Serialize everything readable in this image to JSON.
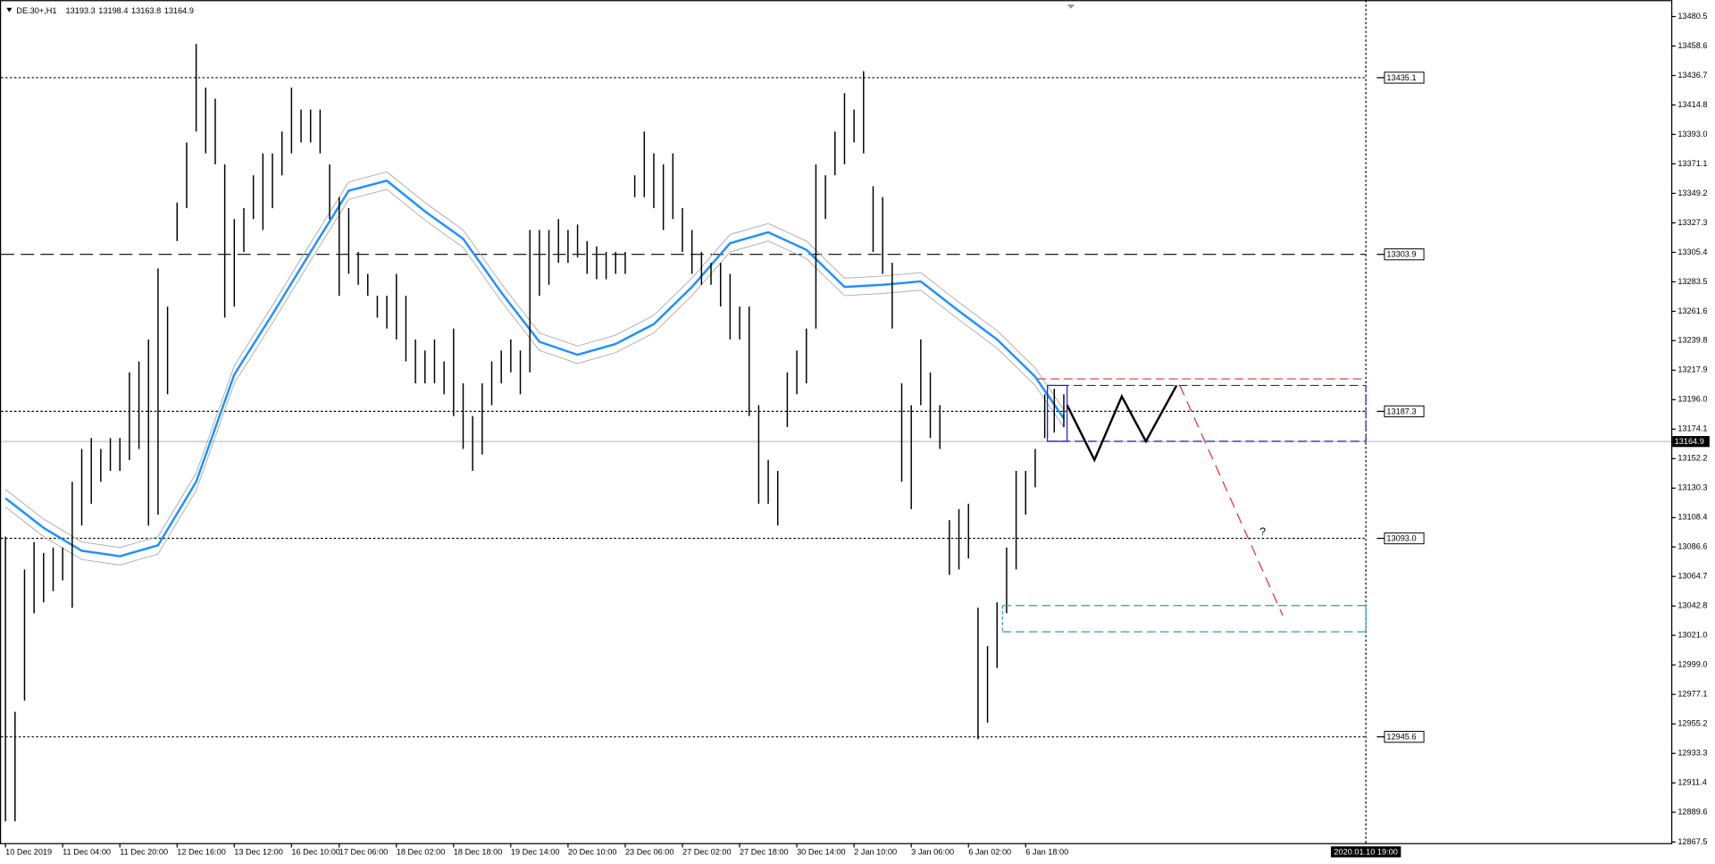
{
  "chart_data": {
    "type": "ohlc",
    "title": "DE.30+,H1",
    "ohlc": [
      13193.3,
      13198.4,
      13163.8,
      13164.9
    ],
    "color": "#000000",
    "categories": [
      "10 Dec 2019",
      null,
      null,
      null,
      null,
      null,
      "11 Dec 04:00",
      null,
      null,
      null,
      null,
      null,
      "11 Dec 20:00",
      null,
      null,
      null,
      null,
      null,
      "12 Dec 16:00",
      null,
      null,
      null,
      null,
      null,
      "13 Dec 12:00",
      null,
      null,
      null,
      null,
      null,
      "16 Dec 10:00",
      null,
      null,
      null,
      null,
      "17 Dec 06:00",
      null,
      null,
      null,
      null,
      null,
      "18 Dec 02:00",
      null,
      null,
      null,
      null,
      null,
      "18 Dec 18:00",
      null,
      null,
      null,
      null,
      null,
      "19 Dec 14:00",
      null,
      null,
      null,
      null,
      null,
      "20 Dec 10:00",
      null,
      null,
      null,
      null,
      null,
      "23 Dec 06:00",
      null,
      null,
      null,
      null,
      null,
      "27 Dec 02:00",
      null,
      null,
      null,
      null,
      null,
      "27 Dec 18:00",
      null,
      null,
      null,
      null,
      null,
      "30 Dec 14:00",
      null,
      null,
      null,
      null,
      null,
      "2 Jan 10:00",
      null,
      null,
      null,
      null,
      null,
      "3 Jan 06:00",
      null,
      null,
      null,
      null,
      null,
      "6 Jan 02:00",
      null,
      null,
      null,
      null,
      null,
      "6 Jan 18:00",
      null,
      null,
      null,
      null
    ],
    "high": [
      13094.3,
      12964.2,
      13069.9,
      13090.3,
      13082.1,
      13086.2,
      13086.2,
      13135.0,
      13159.4,
      13167.5,
      13159.4,
      13167.5,
      13167.5,
      13216.3,
      13224.4,
      13240.7,
      13293.5,
      13265.1,
      13342.3,
      13387.0,
      13460.2,
      13427.7,
      13419.5,
      13370.7,
      13330.1,
      13338.2,
      13362.6,
      13378.9,
      13378.9,
      13395.1,
      13427.7,
      13411.4,
      13411.4,
      13411.4,
      13370.7,
      13346.4,
      13338.2,
      13305.7,
      13289.4,
      13273.2,
      13273.2,
      13289.4,
      13273.2,
      13240.7,
      13232.5,
      13240.7,
      13224.4,
      13248.8,
      13208.1,
      13183.8,
      13208.1,
      13224.4,
      13232.5,
      13240.7,
      13232.5,
      13322.0,
      13322.0,
      13322.0,
      13330.1,
      13322.0,
      13326.0,
      13313.8,
      13309.8,
      13305.7,
      13305.7,
      13305.7,
      13362.6,
      13395.1,
      13378.9,
      13370.7,
      13378.9,
      13338.2,
      13322.0,
      13305.7,
      13297.6,
      13297.6,
      13289.4,
      13265.1,
      13265.1,
      13191.9,
      13151.2,
      13143.1,
      13216.3,
      13232.5,
      13248.8,
      13370.7,
      13362.6,
      13395.1,
      13423.6,
      13411.4,
      13439.9,
      13354.5,
      13346.4,
      13297.6,
      13208.1,
      13191.9,
      13240.7,
      13216.3,
      13191.9,
      13106.5,
      13114.7,
      13118.7,
      13041.5,
      13013.0,
      13045.5,
      13086.2,
      13143.1,
      13143.1,
      13159.4,
      13200.0,
      13204.1,
      13200.0
    ],
    "low": [
      12882.9,
      12882.9,
      12972.4,
      13037.4,
      13045.5,
      13053.7,
      13061.8,
      13041.5,
      13102.5,
      13118.7,
      13135.0,
      13143.1,
      13143.1,
      13151.2,
      13159.4,
      13102.5,
      13110.6,
      13200.0,
      13313.8,
      13338.2,
      13395.1,
      13378.9,
      13370.7,
      13256.9,
      13265.1,
      13305.7,
      13330.1,
      13322.0,
      13338.2,
      13362.6,
      13378.9,
      13387.0,
      13387.0,
      13378.9,
      13330.1,
      13273.2,
      13289.4,
      13281.3,
      13273.2,
      13256.9,
      13248.8,
      13240.7,
      13224.4,
      13208.1,
      13208.1,
      13208.1,
      13200.0,
      13183.8,
      13159.4,
      13143.1,
      13155.3,
      13191.9,
      13208.1,
      13216.3,
      13200.0,
      13216.3,
      13273.2,
      13281.3,
      13297.6,
      13297.6,
      13301.6,
      13289.4,
      13285.4,
      13285.4,
      13289.4,
      13289.4,
      13346.4,
      13346.4,
      13338.2,
      13322.0,
      13330.1,
      13305.7,
      13289.4,
      13281.3,
      13281.3,
      13265.1,
      13240.7,
      13240.7,
      13183.8,
      13118.7,
      13118.7,
      13102.5,
      13175.6,
      13200.0,
      13208.1,
      13248.8,
      13330.1,
      13362.6,
      13370.7,
      13387.0,
      13378.9,
      13305.7,
      13289.4,
      13248.8,
      13135.0,
      13114.7,
      13191.9,
      13167.5,
      13159.4,
      13065.9,
      13069.9,
      13078.1,
      12943.9,
      12956.1,
      12996.8,
      13037.4,
      13069.9,
      13110.6,
      13130.9,
      13167.5,
      13171.6,
      13175.6
    ],
    "ma": {
      "color": "#1e90ff",
      "x": [
        0,
        4,
        8,
        12,
        16,
        20,
        24,
        28,
        32,
        36,
        40,
        44,
        48,
        52,
        56,
        60,
        64,
        68,
        72,
        76,
        80,
        84,
        88,
        92,
        96,
        100,
        104,
        108,
        111
      ],
      "values": [
        13122.8,
        13100.8,
        13083.8,
        13079.7,
        13087.8,
        13135.0,
        13214.7,
        13259.4,
        13305.7,
        13351.2,
        13358.6,
        13335.8,
        13315.5,
        13275.6,
        13239.0,
        13229.3,
        13237.4,
        13252.1,
        13279.7,
        13312.2,
        13320.3,
        13307.3,
        13279.7,
        13281.3,
        13283.8,
        13261.8,
        13240.7,
        13213.0,
        13182.1
      ],
      "upper": [
        13129.3,
        13107.3,
        13090.3,
        13086.2,
        13094.3,
        13141.5,
        13221.2,
        13265.9,
        13312.2,
        13357.7,
        13365.1,
        13342.3,
        13322.0,
        13282.1,
        13245.5,
        13235.8,
        13243.9,
        13258.6,
        13286.2,
        13318.7,
        13326.8,
        13313.8,
        13286.2,
        13287.8,
        13290.3,
        13268.3,
        13247.2,
        13219.5,
        13188.6
      ],
      "lower": [
        13116.3,
        13094.3,
        13077.3,
        13073.2,
        13081.3,
        13128.5,
        13208.2,
        13252.9,
        13299.2,
        13344.7,
        13352.1,
        13329.3,
        13309.0,
        13269.1,
        13232.5,
        13222.8,
        13230.9,
        13245.6,
        13273.2,
        13305.7,
        13313.8,
        13300.8,
        13273.2,
        13274.8,
        13277.3,
        13255.3,
        13234.2,
        13206.5,
        13175.6
      ],
      "band_color": "#b0b0b0"
    },
    "levels": [
      {
        "value": 13435.1,
        "label": "13435.1",
        "style": "dotted"
      },
      {
        "value": 13303.9,
        "label": "13303.9",
        "style": "dashed"
      },
      {
        "value": 13187.3,
        "label": "13187.3",
        "style": "dotted"
      },
      {
        "value": 13093.0,
        "label": "13093.0",
        "style": "dotted"
      },
      {
        "value": 12945.6,
        "label": "12945.6",
        "style": "dotted"
      }
    ],
    "last_price": 13164.9,
    "cursor_time": "2020.01.10 19:00",
    "ylim": [
      12866.7,
      13492.7
    ],
    "yticks": [
      13480.5,
      13458.6,
      13436.7,
      13414.8,
      {
        "value": 13393,
        "label": "13393.0"
      },
      13371.1,
      13349.2,
      13327.3,
      13305.4,
      13283.5,
      13261.6,
      13239.8,
      13217.9,
      {
        "value": 13196,
        "label": "13196.0"
      },
      13174.1,
      13152.2,
      13130.3,
      13108.4,
      13086.6,
      13064.7,
      13042.8,
      {
        "value": 13021,
        "label": "13021.0"
      },
      {
        "value": 12999,
        "label": "12999.0"
      },
      12977.1,
      12955.2,
      12933.3,
      12911.4,
      12889.6,
      12867.5
    ],
    "grid": false
  }
}
